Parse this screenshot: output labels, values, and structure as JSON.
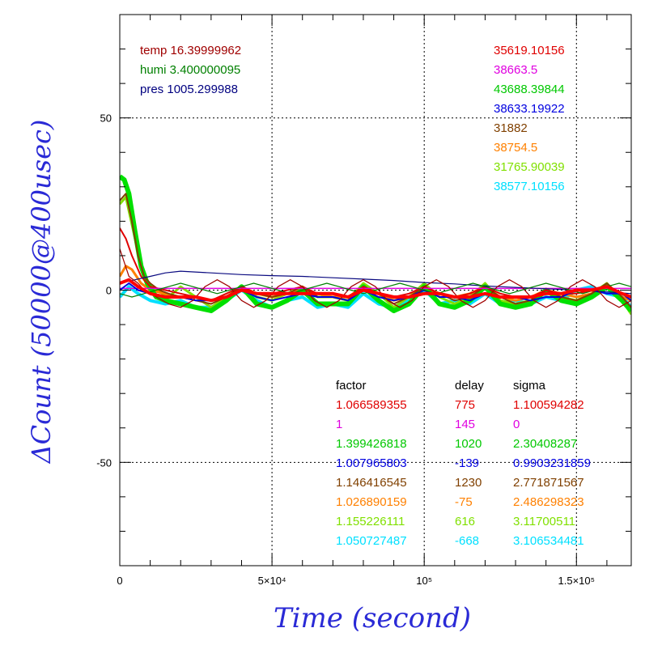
{
  "chart_data": {
    "type": "line",
    "xlabel": "Time (second)",
    "ylabel": "ΔCount (50000@400usec)",
    "xlim": [
      0,
      168000
    ],
    "ylim": [
      -80,
      80
    ],
    "x_ticks": [
      {
        "value": 0,
        "label": "0"
      },
      {
        "value": 50000,
        "label": "5×10⁴"
      },
      {
        "value": 100000,
        "label": "10⁵"
      },
      {
        "value": 150000,
        "label": "1.5×10⁵"
      }
    ],
    "y_ticks": [
      {
        "value": 50,
        "label": "50"
      },
      {
        "value": 0,
        "label": "0"
      },
      {
        "value": -50,
        "label": "-50"
      }
    ],
    "grid": true,
    "env_labels": [
      {
        "text": "temp 16.39999962",
        "color": "#a00000"
      },
      {
        "text": "humi 3.400000095",
        "color": "#008000"
      },
      {
        "text": "pres 1005.299988",
        "color": "#000080"
      }
    ],
    "count_labels": [
      {
        "text": "35619.10156",
        "color": "#e00000"
      },
      {
        "text": "38663.5",
        "color": "#e000e0"
      },
      {
        "text": "43688.39844",
        "color": "#00c800"
      },
      {
        "text": "38633.19922",
        "color": "#0000e0"
      },
      {
        "text": "31882",
        "color": "#804000"
      },
      {
        "text": "38754.5",
        "color": "#ff8000"
      },
      {
        "text": "31765.90039",
        "color": "#80e000"
      },
      {
        "text": "38577.10156",
        "color": "#00e0ff"
      }
    ],
    "table": {
      "headers": [
        "factor",
        "delay",
        "sigma"
      ],
      "rows": [
        {
          "factor": "1.066589355",
          "delay": "775",
          "sigma": "1.100594282",
          "color": "#e00000"
        },
        {
          "factor": "1",
          "delay": "145",
          "sigma": "0",
          "color": "#e000e0"
        },
        {
          "factor": "1.399426818",
          "delay": "1020",
          "sigma": "2.30408287",
          "color": "#00c800"
        },
        {
          "factor": "1.007965803",
          "delay": "-139",
          "sigma": "0.9903231859",
          "color": "#0000e0"
        },
        {
          "factor": "1.146416545",
          "delay": "1230",
          "sigma": "2.771871567",
          "color": "#804000"
        },
        {
          "factor": "1.026890159",
          "delay": "-75",
          "sigma": "2.486298323",
          "color": "#ff8000"
        },
        {
          "factor": "1.155226111",
          "delay": "616",
          "sigma": "3.11700511",
          "color": "#80e000"
        },
        {
          "factor": "1.050727487",
          "delay": "-668",
          "sigma": "3.106534481",
          "color": "#00e0ff"
        }
      ]
    },
    "series": [
      {
        "color": "#00e0ff",
        "width": 4,
        "x": [
          0,
          3000,
          6000,
          10000,
          15000,
          20000,
          25000,
          30000,
          35000,
          40000,
          45000,
          50000,
          55000,
          60000,
          65000,
          70000,
          75000,
          80000,
          85000,
          90000,
          95000,
          100000,
          105000,
          110000,
          115000,
          120000,
          125000,
          130000,
          135000,
          140000,
          145000,
          150000,
          155000,
          160000,
          165000,
          168000
        ],
        "y": [
          -2,
          1,
          -1,
          -3,
          -4,
          -3,
          -5,
          -5,
          -3,
          0,
          -3,
          -5,
          -3,
          -2,
          -5,
          -4,
          -5,
          -1,
          -4,
          -5,
          -3,
          0,
          -4,
          -3,
          -4,
          -1,
          -4,
          -3,
          -4,
          -2,
          -3,
          0,
          1,
          -1,
          -2,
          -5
        ]
      },
      {
        "color": "#80e000",
        "width": 3,
        "x": [
          0,
          2000,
          5000,
          8000,
          12000,
          16000,
          20000,
          25000,
          30000,
          35000,
          40000,
          45000,
          50000,
          55000,
          60000,
          65000,
          70000,
          75000,
          80000,
          85000,
          90000,
          95000,
          100000,
          105000,
          110000,
          115000,
          120000,
          125000,
          130000,
          135000,
          140000,
          145000,
          150000,
          155000,
          160000,
          165000,
          168000
        ],
        "y": [
          25,
          27,
          15,
          3,
          0,
          -2,
          1,
          -2,
          -5,
          -2,
          1,
          -2,
          -3,
          -1,
          1,
          -2,
          -2,
          -3,
          2,
          -1,
          -5,
          -2,
          2,
          -2,
          -4,
          -2,
          2,
          -3,
          -4,
          -3,
          0,
          -2,
          -3,
          -1,
          2,
          -3,
          -7
        ]
      },
      {
        "color": "#ff8000",
        "width": 3,
        "x": [
          0,
          2000,
          4000,
          7000,
          10000,
          15000,
          20000,
          25000,
          30000,
          35000,
          40000,
          45000,
          50000,
          55000,
          60000,
          65000,
          70000,
          75000,
          80000,
          85000,
          90000,
          95000,
          100000,
          105000,
          110000,
          115000,
          120000,
          125000,
          130000,
          135000,
          140000,
          145000,
          150000,
          155000,
          160000,
          165000,
          168000
        ],
        "y": [
          4,
          7,
          6,
          2,
          0,
          -1,
          -2,
          -2,
          -3,
          -2,
          1,
          -1,
          -2,
          -1,
          0,
          -1,
          -2,
          -2,
          1,
          -1,
          -3,
          -2,
          1,
          -1,
          -2,
          -1,
          1,
          -2,
          -3,
          -2,
          0,
          -1,
          -2,
          -1,
          1,
          -2,
          -3
        ]
      },
      {
        "color": "#00e000",
        "width": 6,
        "x": [
          0,
          1500,
          3000,
          5000,
          7000,
          9000,
          12000,
          15000,
          20000,
          25000,
          30000,
          35000,
          40000,
          45000,
          50000,
          55000,
          60000,
          65000,
          70000,
          75000,
          80000,
          85000,
          90000,
          95000,
          100000,
          105000,
          110000,
          115000,
          120000,
          125000,
          130000,
          135000,
          140000,
          145000,
          150000,
          155000,
          160000,
          165000,
          168000
        ],
        "y": [
          33,
          32,
          28,
          17,
          7,
          2,
          -2,
          -3,
          -4,
          -5,
          -6,
          -3,
          1,
          -4,
          -5,
          -3,
          0,
          -4,
          -4,
          -4,
          1,
          -3,
          -6,
          -4,
          1,
          -4,
          -5,
          -3,
          1,
          -4,
          -5,
          -4,
          0,
          -3,
          -4,
          -2,
          1,
          -3,
          -6
        ]
      },
      {
        "color": "#804000",
        "width": 2,
        "x": [
          0,
          2000,
          4000,
          6000,
          8000,
          10000,
          13000,
          16000,
          20000,
          25000,
          30000,
          35000,
          40000,
          45000,
          50000,
          55000,
          60000,
          65000,
          70000,
          75000,
          80000,
          85000,
          90000,
          95000,
          100000,
          105000,
          110000,
          115000,
          120000,
          125000,
          130000,
          135000,
          140000,
          145000,
          150000,
          155000,
          160000,
          165000,
          168000
        ],
        "y": [
          26,
          28,
          20,
          10,
          4,
          2,
          0,
          -1,
          -2,
          -3,
          -4,
          -2,
          1,
          -1,
          -2,
          -1,
          1,
          -2,
          -2,
          -3,
          1,
          -1,
          -4,
          -2,
          1,
          -1,
          -3,
          -2,
          1,
          -2,
          -4,
          -3,
          0,
          -2,
          -3,
          -1,
          2,
          -2,
          -5
        ]
      },
      {
        "color": "#e00000",
        "width": 2,
        "x": [
          0,
          2000,
          4000,
          7000,
          10000,
          15000,
          20000,
          25000,
          30000,
          35000,
          40000,
          45000,
          50000,
          55000,
          60000,
          65000,
          70000,
          75000,
          80000,
          85000,
          90000,
          95000,
          100000,
          105000,
          110000,
          115000,
          120000,
          125000,
          130000,
          135000,
          140000,
          145000,
          150000,
          155000,
          160000,
          165000,
          168000
        ],
        "y": [
          18,
          15,
          10,
          4,
          1,
          0,
          -1,
          -2,
          -3,
          -1,
          1,
          -1,
          -1,
          0,
          1,
          -1,
          -1,
          -2,
          1,
          -1,
          -2,
          -1,
          1,
          -1,
          -2,
          -1,
          1,
          -1,
          -2,
          -2,
          0,
          -1,
          -1,
          0,
          1,
          -1,
          -2
        ]
      },
      {
        "color": "#e000e0",
        "width": 1.5,
        "x": [
          0,
          168000
        ],
        "y": [
          0.5,
          0.5
        ]
      },
      {
        "color": "#0000e0",
        "width": 2,
        "x": [
          0,
          3000,
          6000,
          10000,
          15000,
          20000,
          25000,
          30000,
          35000,
          40000,
          45000,
          50000,
          55000,
          60000,
          65000,
          70000,
          75000,
          80000,
          85000,
          90000,
          95000,
          100000,
          105000,
          110000,
          115000,
          120000,
          125000,
          130000,
          135000,
          140000,
          145000,
          150000,
          155000,
          160000,
          165000,
          168000
        ],
        "y": [
          0,
          2,
          0,
          -1,
          -2,
          -2,
          -3,
          -3,
          -2,
          0,
          -2,
          -3,
          -2,
          -1,
          -2,
          -2,
          -3,
          0,
          -2,
          -3,
          -2,
          0,
          -2,
          -2,
          -3,
          -1,
          -2,
          -2,
          -3,
          -2,
          -2,
          0,
          0,
          -1,
          -1,
          -3
        ]
      },
      {
        "color": "#0a0a80",
        "width": 1.2,
        "x": [
          0,
          5000,
          10000,
          15000,
          20000,
          30000,
          40000,
          50000,
          60000,
          70000,
          80000,
          90000,
          100000,
          110000,
          120000,
          130000,
          140000,
          150000,
          160000,
          168000
        ],
        "y": [
          2,
          3,
          4,
          5,
          5.5,
          5,
          4.5,
          4.2,
          4,
          3.6,
          3.2,
          2.8,
          2.2,
          1.8,
          1.2,
          0.8,
          0.4,
          0,
          -0.5,
          -1
        ]
      },
      {
        "color": "#a00000",
        "width": 1.2,
        "x": [
          0,
          3000,
          6000,
          8000,
          12000,
          16000,
          20000,
          24000,
          28000,
          32000,
          36000,
          40000,
          44000,
          48000,
          52000,
          56000,
          60000,
          64000,
          68000,
          72000,
          76000,
          80000,
          84000,
          88000,
          92000,
          96000,
          100000,
          104000,
          108000,
          112000,
          116000,
          120000,
          124000,
          128000,
          132000,
          136000,
          140000,
          144000,
          148000,
          152000,
          156000,
          160000,
          164000,
          168000
        ],
        "y": [
          12,
          4,
          2,
          0,
          -2,
          -4,
          -5,
          -3,
          1,
          3,
          1,
          -3,
          -5,
          -3,
          1,
          3,
          1,
          -3,
          -5,
          -3,
          1,
          3,
          1,
          -3,
          -5,
          -3,
          1,
          3,
          1,
          -3,
          -5,
          -3,
          1,
          3,
          1,
          -3,
          -5,
          -3,
          1,
          3,
          1,
          -3,
          -5,
          -3
        ]
      },
      {
        "color": "#008000",
        "width": 1.2,
        "x": [
          0,
          4000,
          8000,
          12000,
          16000,
          20000,
          24000,
          28000,
          32000,
          36000,
          40000,
          44000,
          48000,
          52000,
          56000,
          60000,
          64000,
          68000,
          72000,
          76000,
          80000,
          84000,
          88000,
          92000,
          96000,
          100000,
          104000,
          108000,
          112000,
          116000,
          120000,
          124000,
          128000,
          132000,
          136000,
          140000,
          144000,
          148000,
          152000,
          156000,
          160000,
          164000,
          168000
        ],
        "y": [
          -1,
          -2,
          -1,
          0,
          1,
          2,
          1,
          0,
          -1,
          0,
          1,
          2,
          1,
          0,
          -1,
          0,
          1,
          2,
          1,
          0,
          -1,
          0,
          1,
          2,
          1,
          0,
          -1,
          0,
          1,
          2,
          1,
          0,
          -1,
          0,
          1,
          2,
          1,
          0,
          -1,
          0,
          1,
          2,
          1
        ]
      },
      {
        "color": "#ff0000",
        "width": 4,
        "x": [
          0,
          3000,
          6000,
          10000,
          15000,
          20000,
          25000,
          30000,
          35000,
          40000,
          45000,
          50000,
          55000,
          60000,
          65000,
          70000,
          75000,
          80000,
          85000,
          90000,
          95000,
          100000,
          105000,
          110000,
          115000,
          120000,
          125000,
          130000,
          135000,
          140000,
          145000,
          150000,
          155000,
          160000,
          165000,
          168000
        ],
        "y": [
          2,
          3,
          1,
          -1,
          -2,
          -2,
          -2,
          -3,
          -2,
          0,
          -1,
          -1,
          -1,
          -1,
          -1,
          -1,
          -2,
          0,
          -1,
          -2,
          -2,
          -1,
          -1,
          -2,
          -2,
          -1,
          -2,
          -2,
          -2,
          -1,
          -1,
          0,
          0,
          1,
          -1,
          -2
        ]
      }
    ]
  }
}
